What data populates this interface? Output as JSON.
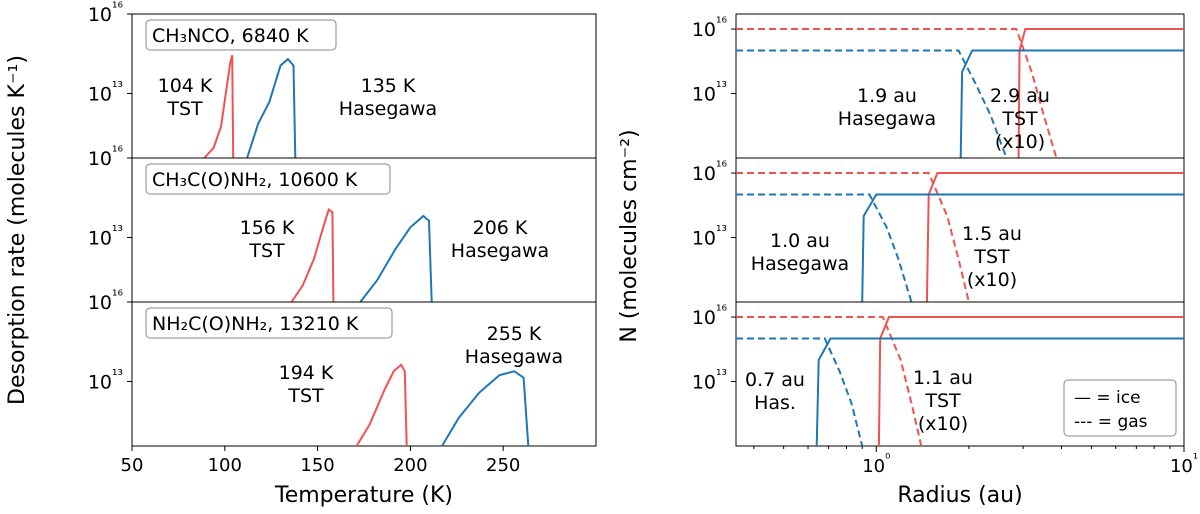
{
  "colors": {
    "tst": "#ef5350",
    "hasegawa": "#1f77b4",
    "axis": "#000000"
  },
  "chart_data": [
    {
      "type": "line",
      "panel": "desorption",
      "ylabel": "Desorption rate (molecules K⁻¹)",
      "xlabel": "Temperature (K)",
      "xlim": [
        50,
        300
      ],
      "xticks": [
        "50",
        "100",
        "150",
        "200",
        "250"
      ],
      "yscale": "log",
      "yticks": [
        "10¹³",
        "10¹⁶"
      ],
      "subplots": [
        {
          "label": "CH₃NCO, 6840 K",
          "series": [
            {
              "name": "TST",
              "color": "#ef5350",
              "points": [
                [
                  89,
                  10000000000.0
                ],
                [
                  94,
                  30000000000.0
                ],
                [
                  98,
                  300000000000.0
                ],
                [
                  101,
                  20000000000000.0
                ],
                [
                  103,
                  300000000000000.0
                ],
                [
                  104,
                  600000000000000.0
                ],
                [
                  104.5,
                  10000000000.0
                ]
              ]
            },
            {
              "name": "Hasegawa",
              "color": "#1f77b4",
              "points": [
                [
                  112,
                  10000000000.0
                ],
                [
                  118,
                  400000000000.0
                ],
                [
                  124,
                  4000000000000.0
                ],
                [
                  130,
                  200000000000000.0
                ],
                [
                  134,
                  400000000000000.0
                ],
                [
                  137,
                  200000000000000.0
                ],
                [
                  138,
                  10000000000.0
                ]
              ]
            }
          ],
          "annotations": [
            {
              "lines": [
                "104 K",
                "TST"
              ]
            },
            {
              "lines": [
                "135 K",
                "Hasegawa"
              ]
            }
          ]
        },
        {
          "label": "CH₃C(O)NH₂, 10600 K",
          "series": [
            {
              "name": "TST",
              "color": "#ef5350",
              "points": [
                [
                  136,
                  10000000000.0
                ],
                [
                  142,
                  60000000000.0
                ],
                [
                  148,
                  1000000000000.0
                ],
                [
                  153,
                  30000000000000.0
                ],
                [
                  156,
                  200000000000000.0
                ],
                [
                  158,
                  150000000000000.0
                ],
                [
                  158.5,
                  10000000000.0
                ]
              ]
            },
            {
              "name": "Hasegawa",
              "color": "#1f77b4",
              "points": [
                [
                  173,
                  10000000000.0
                ],
                [
                  182,
                  100000000000.0
                ],
                [
                  192,
                  3000000000000.0
                ],
                [
                  200,
                  30000000000000.0
                ],
                [
                  207,
                  100000000000000.0
                ],
                [
                  210,
                  60000000000000.0
                ],
                [
                  211.5,
                  10000000000.0
                ]
              ]
            }
          ],
          "annotations": [
            {
              "lines": [
                "156 K",
                "TST"
              ]
            },
            {
              "lines": [
                "206 K",
                "Hasegawa"
              ]
            }
          ]
        },
        {
          "label": "NH₂C(O)NH₂, 13210 K",
          "series": [
            {
              "name": "TST",
              "color": "#ef5350",
              "points": [
                [
                  171,
                  10000000000.0
                ],
                [
                  178,
                  100000000000.0
                ],
                [
                  186,
                  4000000000000.0
                ],
                [
                  191,
                  30000000000000.0
                ],
                [
                  195,
                  60000000000000.0
                ],
                [
                  197,
                  30000000000000.0
                ],
                [
                  198,
                  10000000000.0
                ]
              ]
            },
            {
              "name": "Hasegawa",
              "color": "#1f77b4",
              "points": [
                [
                  217,
                  10000000000.0
                ],
                [
                  226,
                  200000000000.0
                ],
                [
                  237,
                  3000000000000.0
                ],
                [
                  248,
                  20000000000000.0
                ],
                [
                  256,
                  30000000000000.0
                ],
                [
                  261,
                  15000000000000.0
                ],
                [
                  263.5,
                  10000000000.0
                ]
              ]
            }
          ],
          "annotations": [
            {
              "lines": [
                "194 K",
                "TST"
              ]
            },
            {
              "lines": [
                "255 K",
                "Hasegawa"
              ]
            }
          ]
        }
      ]
    },
    {
      "type": "line",
      "panel": "column-density",
      "ylabel": "N (molecules cm⁻²)",
      "xlabel": "Radius (au)",
      "xscale": "log",
      "xlim": [
        0.35,
        10
      ],
      "xticks": [
        "10⁰",
        "10¹"
      ],
      "yscale": "log",
      "yticks": [
        "10¹³",
        "10¹⁶"
      ],
      "legend": {
        "position": "bottom-right",
        "entries": [
          "— = ice",
          "--- = gas"
        ]
      },
      "subplots": [
        {
          "series": [
            {
              "name": "TST gas",
              "style": "dashed",
              "color": "#ef5350",
              "points": [
                [
                  0.35,
                  1e+16
                ],
                [
                  2.85,
                  1e+16
                ],
                [
                  3.2,
                  100000000000000.0
                ],
                [
                  3.5,
                  1000000000000.0
                ],
                [
                  3.85,
                  10000000000.0
                ]
              ]
            },
            {
              "name": "TST ice",
              "style": "solid",
              "color": "#ef5350",
              "points": [
                [
                  2.9,
                  10000000000.0
                ],
                [
                  2.92,
                  1000000000000000.0
                ],
                [
                  3.05,
                  1e+16
                ],
                [
                  10,
                  1e+16
                ]
              ]
            },
            {
              "name": "Hasegawa gas",
              "style": "dashed",
              "color": "#1f77b4",
              "points": [
                [
                  0.35,
                  1000000000000000.0
                ],
                [
                  1.85,
                  1000000000000000.0
                ],
                [
                  2.1,
                  30000000000000.0
                ],
                [
                  2.35,
                  1000000000000.0
                ],
                [
                  2.65,
                  10000000000.0
                ]
              ]
            },
            {
              "name": "Hasegawa ice",
              "style": "solid",
              "color": "#1f77b4",
              "points": [
                [
                  1.88,
                  10000000000.0
                ],
                [
                  1.9,
                  100000000000000.0
                ],
                [
                  2.05,
                  1000000000000000.0
                ],
                [
                  10,
                  1000000000000000.0
                ]
              ]
            }
          ],
          "annotations": [
            {
              "lines": [
                "1.9 au",
                "Hasegawa"
              ]
            },
            {
              "lines": [
                "2.9 au",
                "TST",
                "(x10)"
              ]
            }
          ]
        },
        {
          "series": [
            {
              "name": "TST gas",
              "style": "dashed",
              "color": "#ef5350",
              "points": [
                [
                  0.35,
                  1e+16
                ],
                [
                  1.48,
                  1e+16
                ],
                [
                  1.7,
                  100000000000000.0
                ],
                [
                  1.85,
                  1000000000000.0
                ],
                [
                  2.0,
                  10000000000.0
                ]
              ]
            },
            {
              "name": "TST ice",
              "style": "solid",
              "color": "#ef5350",
              "points": [
                [
                  1.46,
                  10000000000.0
                ],
                [
                  1.48,
                  1000000000000000.0
                ],
                [
                  1.58,
                  1e+16
                ],
                [
                  10,
                  1e+16
                ]
              ]
            },
            {
              "name": "Hasegawa gas",
              "style": "dashed",
              "color": "#1f77b4",
              "points": [
                [
                  0.35,
                  1000000000000000.0
                ],
                [
                  0.95,
                  1000000000000000.0
                ],
                [
                  1.08,
                  30000000000000.0
                ],
                [
                  1.18,
                  1000000000000.0
                ],
                [
                  1.3,
                  10000000000.0
                ]
              ]
            },
            {
              "name": "Hasegawa ice",
              "style": "solid",
              "color": "#1f77b4",
              "points": [
                [
                  0.9,
                  10000000000.0
                ],
                [
                  0.91,
                  100000000000000.0
                ],
                [
                  1.0,
                  1000000000000000.0
                ],
                [
                  10,
                  1000000000000000.0
                ]
              ]
            }
          ],
          "annotations": [
            {
              "lines": [
                "1.0 au",
                "Hasegawa"
              ]
            },
            {
              "lines": [
                "1.5 au",
                "TST",
                "(x10)"
              ]
            }
          ]
        },
        {
          "series": [
            {
              "name": "TST gas",
              "style": "dashed",
              "color": "#ef5350",
              "points": [
                [
                  0.35,
                  1e+16
                ],
                [
                  1.05,
                  1e+16
                ],
                [
                  1.2,
                  100000000000000.0
                ],
                [
                  1.3,
                  1000000000000.0
                ],
                [
                  1.4,
                  10000000000.0
                ]
              ]
            },
            {
              "name": "TST ice",
              "style": "solid",
              "color": "#ef5350",
              "points": [
                [
                  1.02,
                  10000000000.0
                ],
                [
                  1.03,
                  1000000000000000.0
                ],
                [
                  1.1,
                  1e+16
                ],
                [
                  10,
                  1e+16
                ]
              ]
            },
            {
              "name": "Hasegawa gas",
              "style": "dashed",
              "color": "#1f77b4",
              "points": [
                [
                  0.35,
                  1000000000000000.0
                ],
                [
                  0.68,
                  1000000000000000.0
                ],
                [
                  0.76,
                  30000000000000.0
                ],
                [
                  0.83,
                  1000000000000.0
                ],
                [
                  0.9,
                  10000000000.0
                ]
              ]
            },
            {
              "name": "Hasegawa ice",
              "style": "solid",
              "color": "#1f77b4",
              "points": [
                [
                  0.64,
                  10000000000.0
                ],
                [
                  0.65,
                  100000000000000.0
                ],
                [
                  0.71,
                  1000000000000000.0
                ],
                [
                  10,
                  1000000000000000.0
                ]
              ]
            }
          ],
          "annotations": [
            {
              "lines": [
                "0.7 au",
                "Has."
              ]
            },
            {
              "lines": [
                "1.1 au",
                "TST",
                "(x10)"
              ]
            }
          ]
        }
      ]
    }
  ]
}
